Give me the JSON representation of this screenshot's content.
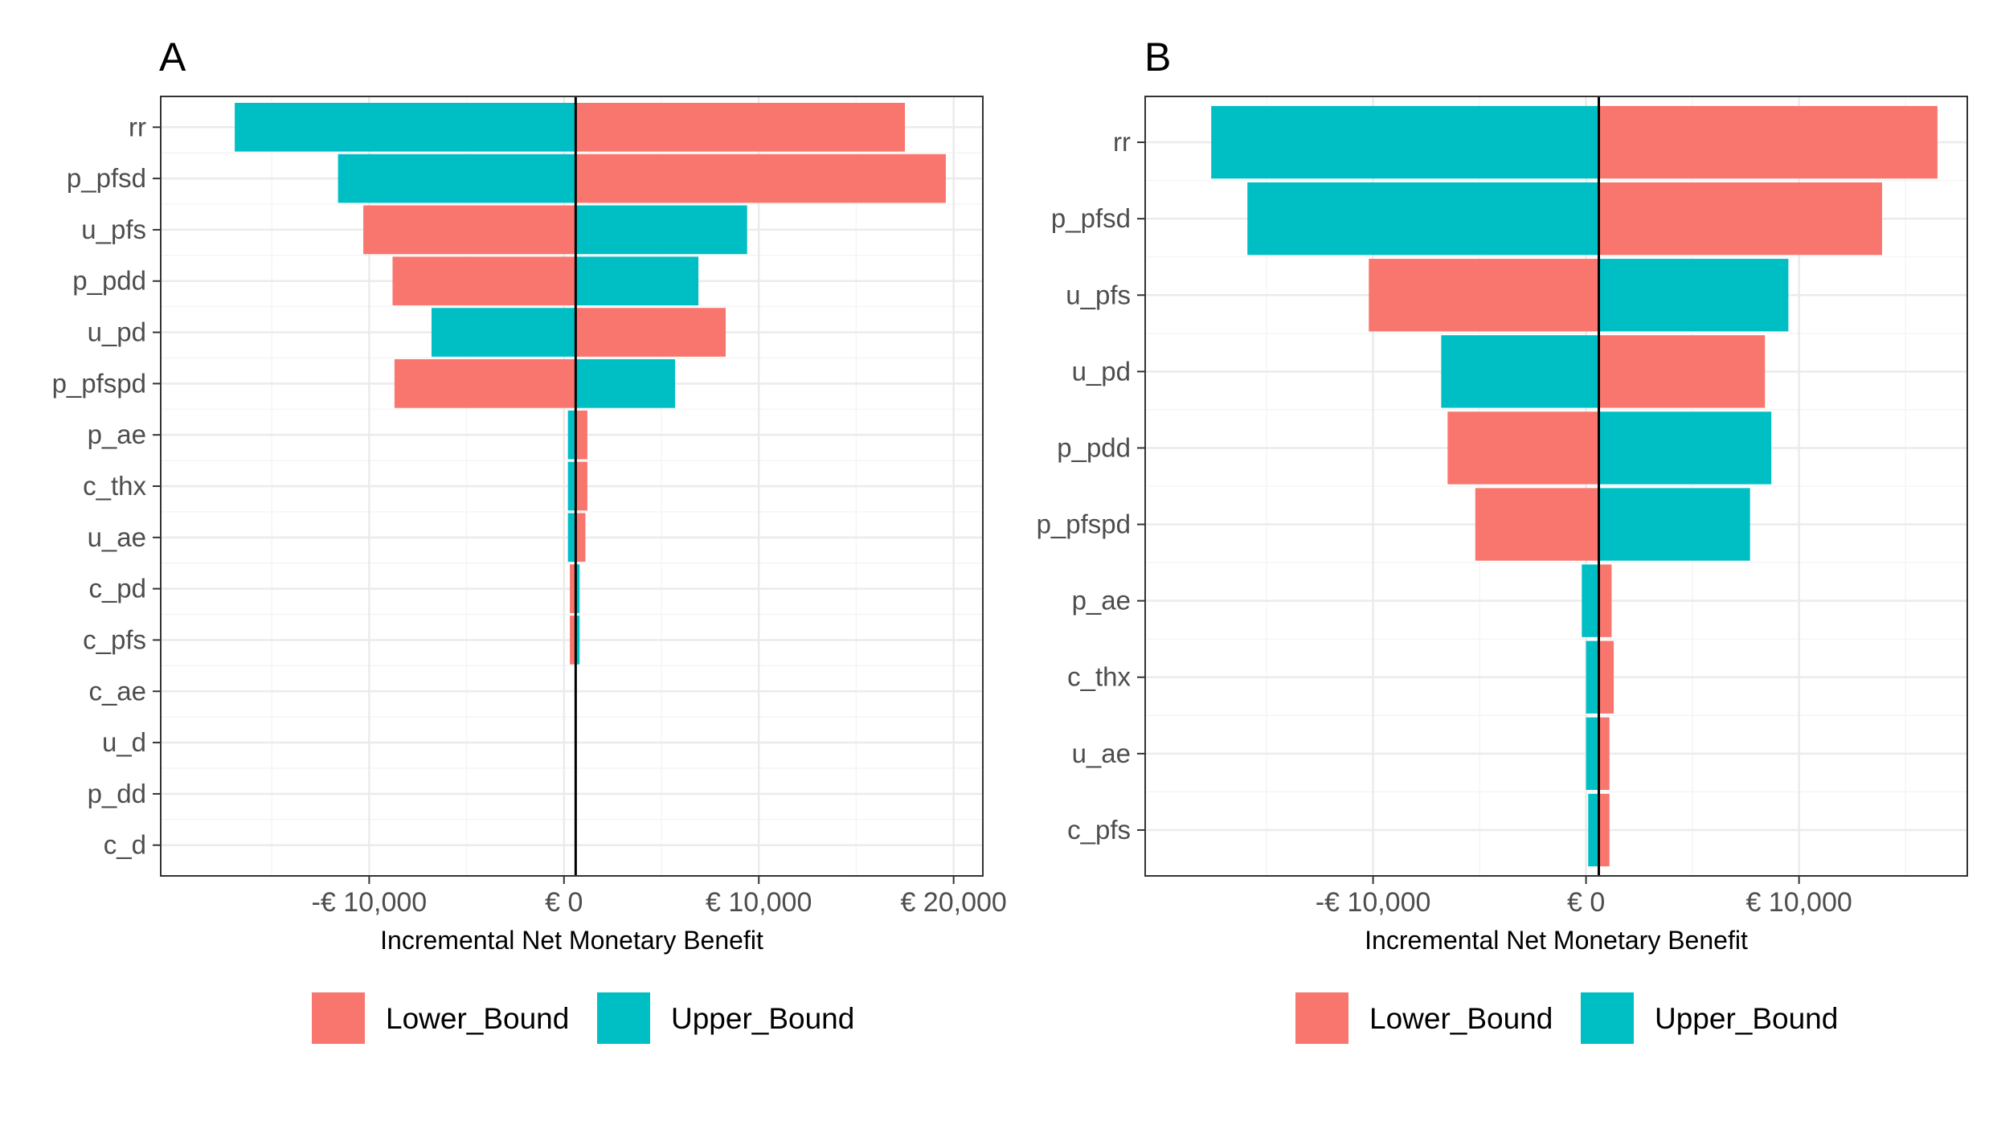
{
  "colors": {
    "lower_bound": "#F8766D",
    "upper_bound": "#00BFC4",
    "grid_major": "#EBEBEB",
    "grid_minor": "#F5F5F5",
    "panel_border": "#333333",
    "zero_line": "#000000"
  },
  "chart_data": [
    {
      "panel": "A",
      "type": "bar",
      "orientation": "horizontal",
      "variant": "tornado",
      "xlabel": "Incremental Net Monetary Benefit",
      "xlim": [
        -20700,
        21500
      ],
      "xticks": [
        {
          "value": -10000,
          "label": "-€ 10,000"
        },
        {
          "value": 0,
          "label": "€ 0"
        },
        {
          "value": 10000,
          "label": "€ 10,000"
        },
        {
          "value": 20000,
          "label": "€ 20,000"
        }
      ],
      "reference_line": 600,
      "grid": true,
      "legend_position": "bottom",
      "categories": [
        "rr",
        "p_pfsd",
        "u_pfs",
        "p_pdd",
        "u_pd",
        "p_pfspd",
        "p_ae",
        "c_thx",
        "u_ae",
        "c_pd",
        "c_pfs",
        "c_ae",
        "u_d",
        "p_dd",
        "c_d"
      ],
      "series": [
        {
          "name": "Lower_Bound",
          "color": "#F8766D",
          "values": [
            17500,
            19600,
            -10300,
            -8800,
            8300,
            -8700,
            1200,
            1200,
            1100,
            300,
            300,
            600,
            600,
            600,
            600
          ]
        },
        {
          "name": "Upper_Bound",
          "color": "#00BFC4",
          "values": [
            -16900,
            -11600,
            9400,
            6900,
            -6800,
            5700,
            200,
            200,
            200,
            800,
            800,
            600,
            600,
            600,
            600
          ]
        }
      ]
    },
    {
      "panel": "B",
      "type": "bar",
      "orientation": "horizontal",
      "variant": "tornado",
      "xlabel": "Incremental Net Monetary Benefit",
      "xlim": [
        -20700,
        17900
      ],
      "xticks": [
        {
          "value": -10000,
          "label": "-€ 10,000"
        },
        {
          "value": 0,
          "label": "€ 0"
        },
        {
          "value": 10000,
          "label": "€ 10,000"
        }
      ],
      "reference_line": 600,
      "grid": true,
      "legend_position": "bottom",
      "categories": [
        "rr",
        "p_pfsd",
        "u_pfs",
        "u_pd",
        "p_pdd",
        "p_pfspd",
        "p_ae",
        "c_thx",
        "u_ae",
        "c_pfs"
      ],
      "series": [
        {
          "name": "Lower_Bound",
          "color": "#F8766D",
          "values": [
            16500,
            13900,
            -10200,
            8400,
            -6500,
            -5200,
            1200,
            1300,
            1100,
            1100
          ]
        },
        {
          "name": "Upper_Bound",
          "color": "#00BFC4",
          "values": [
            -17600,
            -15900,
            9500,
            -6800,
            8700,
            7700,
            -200,
            0,
            0,
            100
          ]
        }
      ]
    }
  ],
  "panels": [
    {
      "tag": "A",
      "legend": [
        "Lower_Bound",
        "Upper_Bound"
      ]
    },
    {
      "tag": "B",
      "legend": [
        "Lower_Bound",
        "Upper_Bound"
      ]
    }
  ]
}
